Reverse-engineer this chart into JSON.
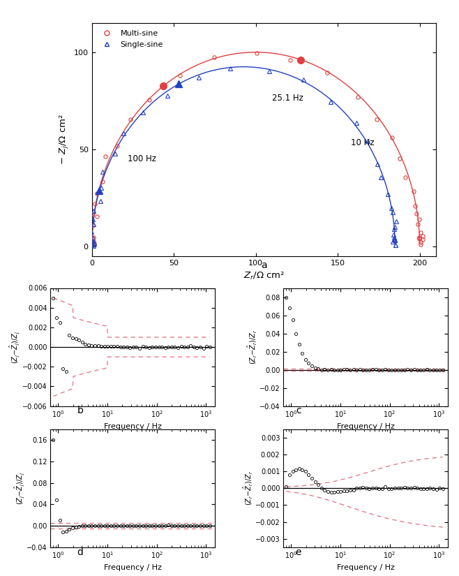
{
  "title_a": "a",
  "title_b": "b",
  "title_c": "c",
  "title_d": "d",
  "title_e": "e",
  "nyquist": {
    "multi_color": "#e04040",
    "single_color": "#2040c0",
    "xlabel": "Zr/Ω cm²",
    "ylabel": "− Zj/Ω cm²",
    "xlim": [
      0,
      210
    ],
    "ylim": [
      -5,
      115
    ],
    "xticks": [
      0,
      50,
      100,
      150,
      200
    ],
    "yticks": [
      0,
      50,
      100
    ]
  },
  "panel_b": {
    "xlabel": "Frequency / Hz",
    "ylim": [
      -0.006,
      0.006
    ],
    "yticks": [
      -0.006,
      -0.004,
      -0.002,
      0.0,
      0.002,
      0.004,
      0.006
    ]
  },
  "panel_c": {
    "xlabel": "Frequency / Hz",
    "ylim": [
      -0.04,
      0.09
    ],
    "yticks": [
      -0.04,
      -0.02,
      0.0,
      0.02,
      0.04,
      0.06,
      0.08
    ]
  },
  "panel_d": {
    "xlabel": "Frequency / Hz",
    "ylim": [
      -0.04,
      0.18
    ],
    "yticks": [
      -0.04,
      0.0,
      0.04,
      0.08,
      0.12,
      0.16
    ]
  },
  "panel_e": {
    "xlabel": "Frequency / Hz",
    "ylim": [
      -0.0035,
      0.0035
    ],
    "yticks": [
      -0.003,
      -0.002,
      -0.001,
      0.0,
      0.001,
      0.002,
      0.003
    ]
  }
}
